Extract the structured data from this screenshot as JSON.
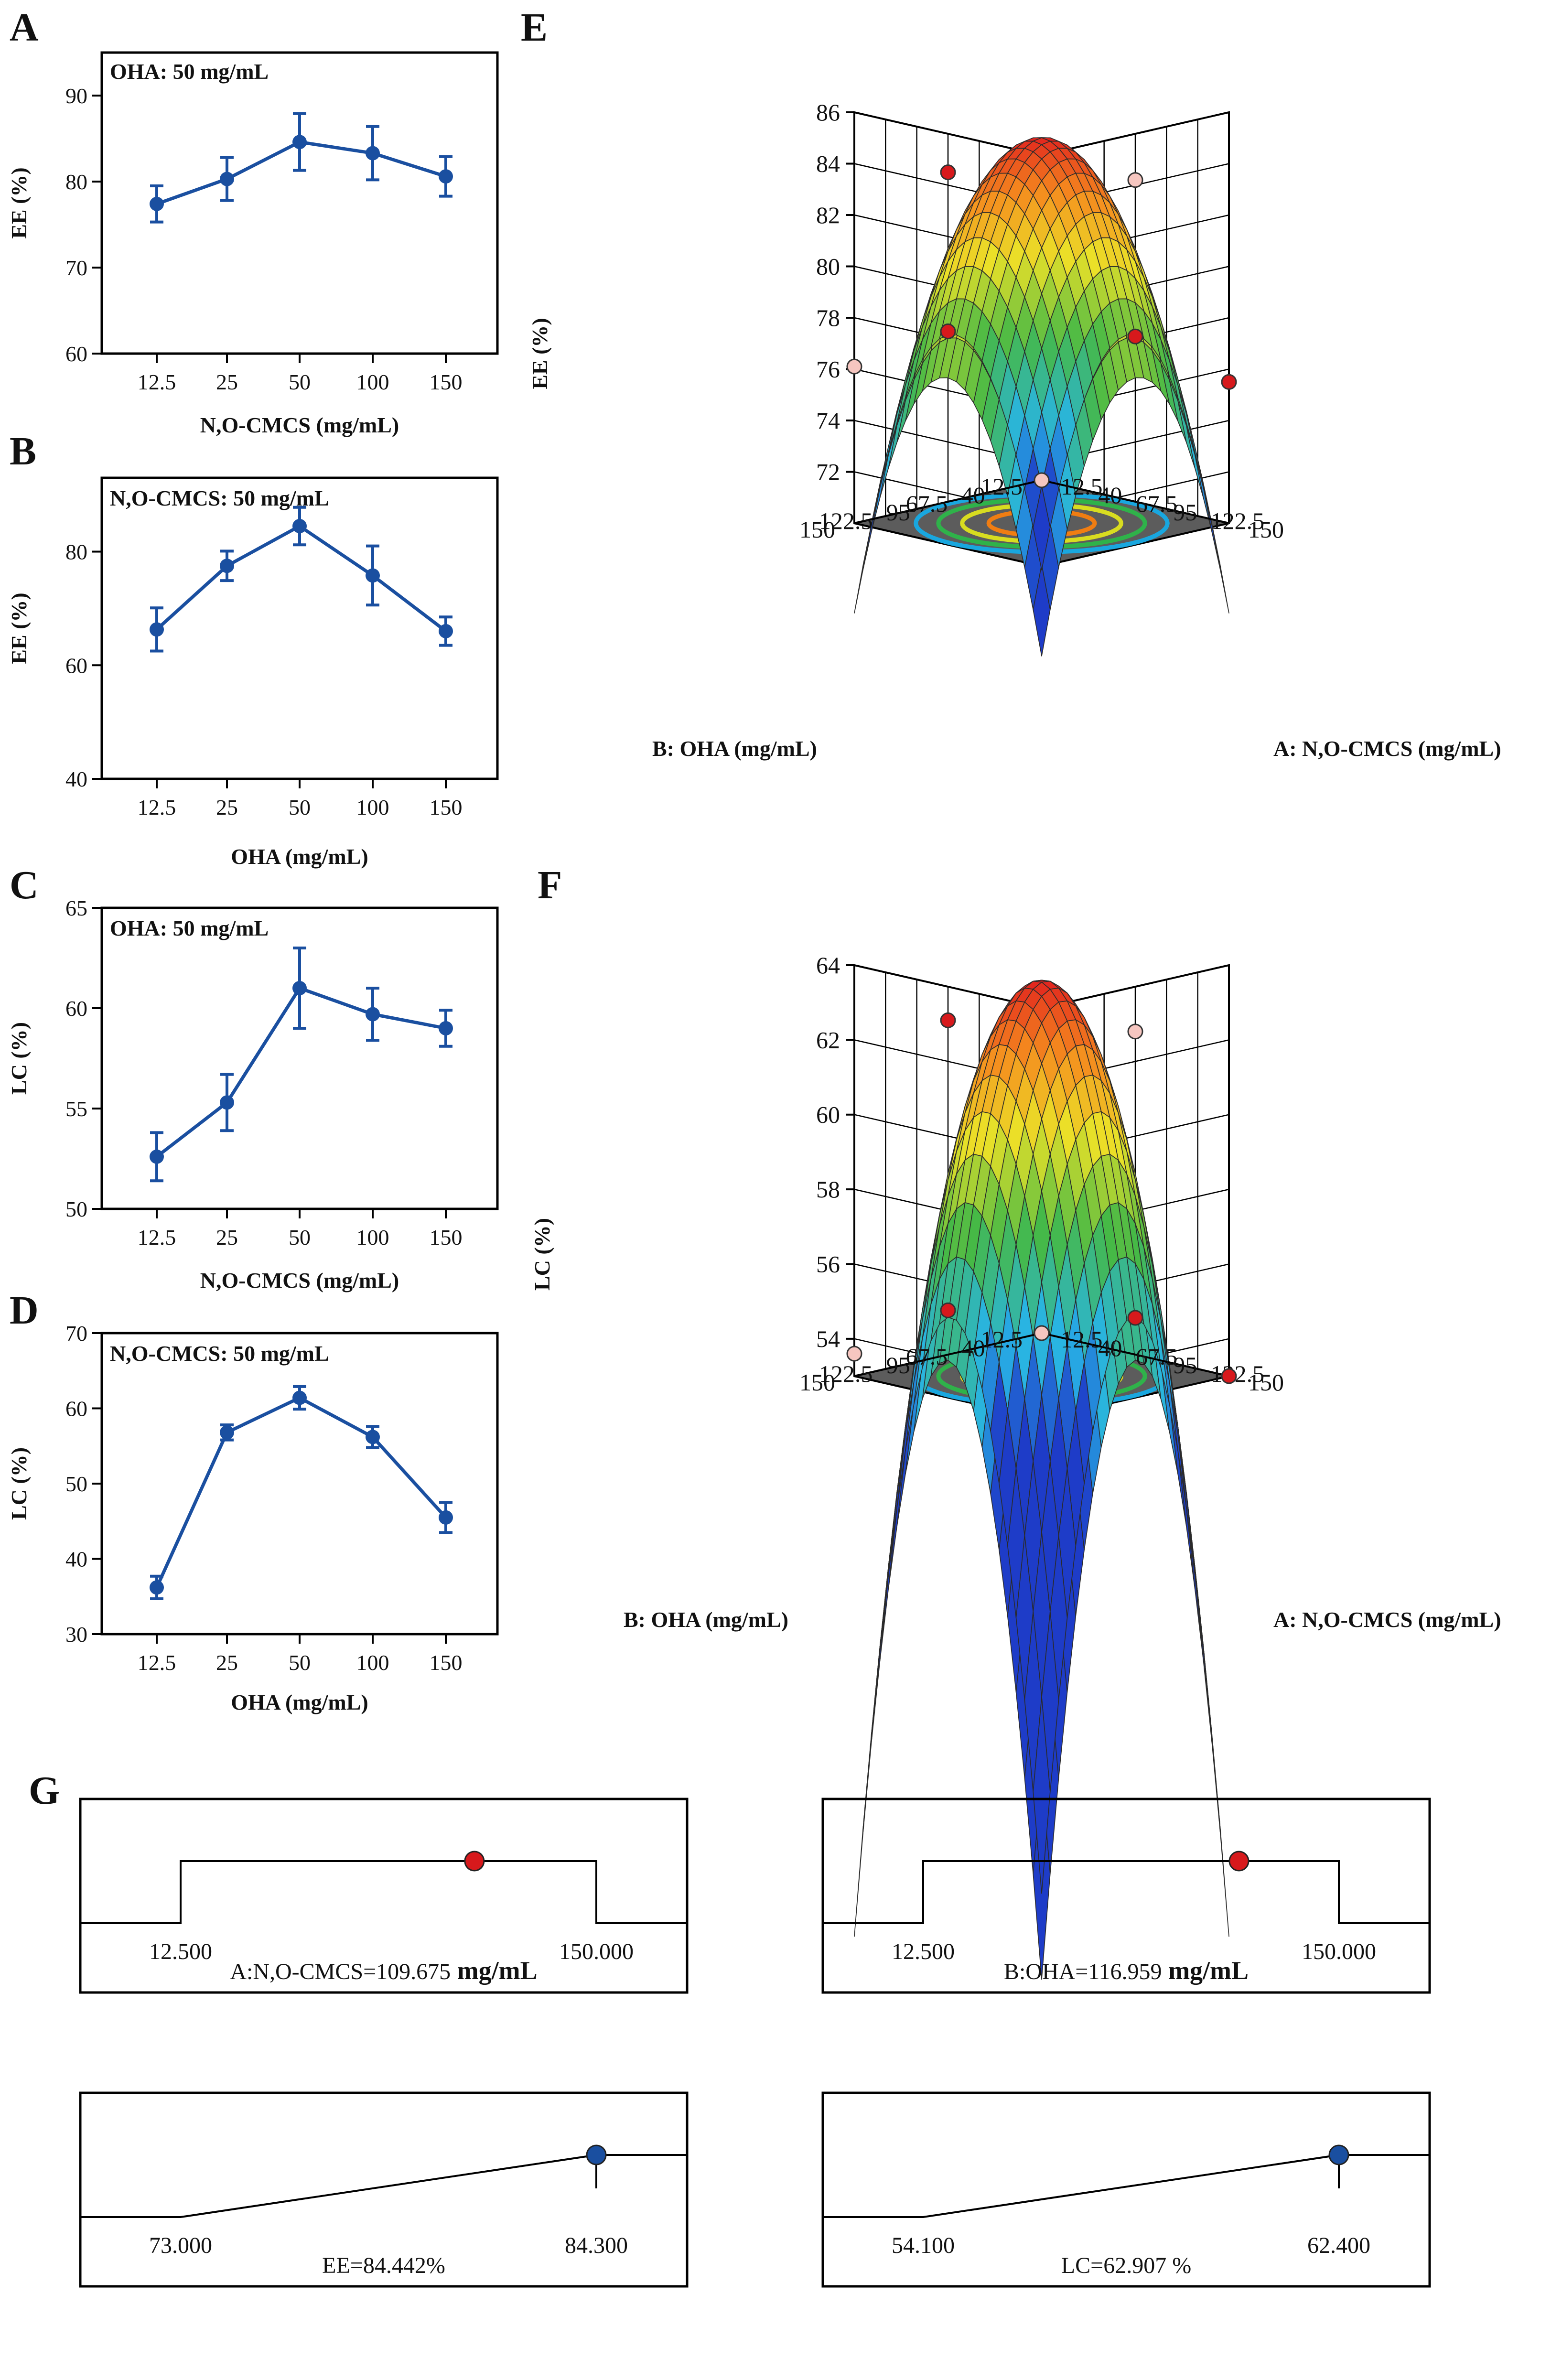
{
  "colors": {
    "line": "#1a4fa0",
    "frame": "#000000",
    "floor": "#5c5c5c",
    "point_red": "#d7191c",
    "point_pink": "#f6c6c0",
    "point_blue": "#1a4fa0",
    "contour": [
      "#19a7df",
      "#2fb24a",
      "#d8dc20",
      "#f07d12"
    ]
  },
  "panels": {
    "A": {
      "label": "A",
      "annotation": "OHA: 50 mg/mL"
    },
    "B": {
      "label": "B",
      "annotation": "N,O-CMCS: 50 mg/mL"
    },
    "C": {
      "label": "C",
      "annotation": "OHA: 50 mg/mL"
    },
    "D": {
      "label": "D",
      "annotation": "N,O-CMCS: 50 mg/mL"
    },
    "E": {
      "label": "E"
    },
    "F": {
      "label": "F"
    },
    "G": {
      "label": "G"
    }
  },
  "chart_data": [
    {
      "id": "A",
      "type": "line",
      "xlabel": "N,O-CMCS (mg/mL)",
      "ylabel": "EE (%)",
      "categories": [
        "12.5",
        "25",
        "50",
        "100",
        "150"
      ],
      "values": [
        77.4,
        80.3,
        84.6,
        83.3,
        80.6
      ],
      "errors": [
        2.1,
        2.5,
        3.3,
        3.1,
        2.3
      ],
      "ylim": [
        60,
        95
      ],
      "yticks": [
        60,
        70,
        80,
        90
      ]
    },
    {
      "id": "B",
      "type": "line",
      "xlabel": "OHA (mg/mL)",
      "ylabel": "EE (%)",
      "categories": [
        "12.5",
        "25",
        "50",
        "100",
        "150"
      ],
      "values": [
        66.3,
        77.5,
        84.5,
        75.8,
        66.0
      ],
      "errors": [
        3.8,
        2.6,
        3.3,
        5.2,
        2.5
      ],
      "ylim": [
        40,
        93
      ],
      "yticks": [
        40,
        60,
        80
      ]
    },
    {
      "id": "C",
      "type": "line",
      "xlabel": "N,O-CMCS (mg/mL)",
      "ylabel": "LC (%)",
      "categories": [
        "12.5",
        "25",
        "50",
        "100",
        "150"
      ],
      "values": [
        52.6,
        55.3,
        61.0,
        59.7,
        59.0
      ],
      "errors": [
        1.2,
        1.4,
        2.0,
        1.3,
        0.9
      ],
      "ylim": [
        50,
        65
      ],
      "yticks": [
        50,
        55,
        60,
        65
      ]
    },
    {
      "id": "D",
      "type": "line",
      "xlabel": "OHA (mg/mL)",
      "ylabel": "LC (%)",
      "categories": [
        "12.5",
        "25",
        "50",
        "100",
        "150"
      ],
      "values": [
        36.2,
        56.8,
        61.4,
        56.2,
        45.5
      ],
      "errors": [
        1.5,
        1.0,
        1.5,
        1.4,
        2.0
      ],
      "ylim": [
        30,
        70
      ],
      "yticks": [
        30,
        40,
        50,
        60,
        70
      ]
    },
    {
      "id": "E",
      "type": "surface",
      "zlabel": "EE (%)",
      "xlabel": "A: N,O-CMCS (mg/mL)",
      "ylabel": "B: OHA (mg/mL)",
      "xticks": [
        "12.5",
        "40",
        "67.5",
        "95",
        "122.5",
        "150"
      ],
      "yticks": [
        "12.5",
        "40",
        "67.5",
        "95",
        "122.5",
        "150"
      ],
      "zticks": [
        72,
        74,
        76,
        78,
        80,
        82,
        84,
        86
      ],
      "zlim": [
        70,
        86
      ],
      "peak": 85.0,
      "corner_value": 69.5,
      "edge_value": 76.5
    },
    {
      "id": "F",
      "type": "surface",
      "zlabel": "LC (%)",
      "xlabel": "A: N,O-CMCS (mg/mL)",
      "ylabel": "B: OHA (mg/mL)",
      "xticks": [
        "12.5",
        "40",
        "67.5",
        "95",
        "122.5",
        "150"
      ],
      "yticks": [
        "12.5",
        "40",
        "67.5",
        "95",
        "122.5",
        "150"
      ],
      "zticks": [
        54,
        56,
        58,
        60,
        62,
        64
      ],
      "zlim": [
        53,
        64
      ],
      "peak": 63.6,
      "corner_value": 50.8,
      "edge_value": 54.0
    },
    {
      "id": "G",
      "type": "desirability",
      "ramps": [
        {
          "low": "12.500",
          "high": "150.000",
          "result_label": "A:N,O-CMCS=109.675",
          "result_unit": "mg/mL",
          "value": 109.675,
          "min": 12.5,
          "max": 150.0,
          "kind": "range"
        },
        {
          "low": "12.500",
          "high": "150.000",
          "result_label": "B:OHA=116.959",
          "result_unit": "mg/mL",
          "value": 116.959,
          "min": 12.5,
          "max": 150.0,
          "kind": "range"
        },
        {
          "low": "73.000",
          "high": "84.300",
          "result_label": "EE=84.442%",
          "result_unit": "",
          "value": 84.442,
          "min": 73.0,
          "max": 84.3,
          "kind": "maximize"
        },
        {
          "low": "54.100",
          "high": "62.400",
          "result_label": "LC=62.907 %",
          "result_unit": "",
          "value": 62.907,
          "min": 54.1,
          "max": 62.4,
          "kind": "maximize"
        }
      ]
    }
  ]
}
